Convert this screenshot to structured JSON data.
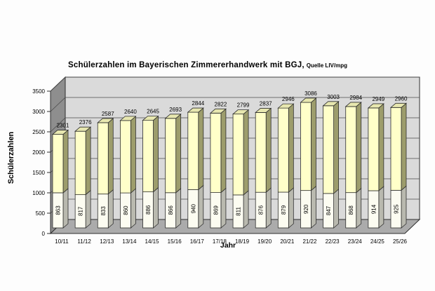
{
  "title": {
    "main": "Schülerzahlen im Bayerischen Zimmererhandwerk mit BGJ,",
    "source": "Quelle LIV/mpg"
  },
  "chart_data": {
    "type": "bar",
    "variant": "3d-stacked-column",
    "title": "Schülerzahlen im Bayerischen Zimmererhandwerk mit BGJ,",
    "source_note": "Quelle LIV/mpg",
    "xlabel": "Jahr",
    "ylabel": "Schülerzahlen",
    "ylim": [
      0,
      3500
    ],
    "yticks": [
      0,
      500,
      1000,
      1500,
      2000,
      2500,
      3000,
      3500
    ],
    "grid": true,
    "legend": false,
    "categories": [
      "10/11",
      "11/12",
      "12/13",
      "13/14",
      "14/15",
      "15/16",
      "16/17",
      "17/18",
      "18/19",
      "19/20",
      "20/21",
      "21/22",
      "22/23",
      "23/24",
      "24/25",
      "25/26"
    ],
    "series": [
      {
        "name": "bottom-segment",
        "values": [
          863,
          817,
          833,
          860,
          886,
          866,
          940,
          869,
          811,
          876,
          879,
          920,
          847,
          868,
          914,
          925
        ],
        "front_color": "#FCFCF1",
        "side_color": "#B9B9AF",
        "top_color": "#E8E8DD"
      },
      {
        "name": "top-segment",
        "values": [
          1438,
          1559,
          1754,
          1780,
          1759,
          1827,
          1904,
          1953,
          1988,
          1961,
          2067,
          2166,
          2156,
          2116,
          2035,
          2035
        ],
        "front_color": "#FFFFC9",
        "side_color": "#9D9D6C",
        "top_color": "#E7E7AF"
      }
    ],
    "totals": [
      2301,
      2376,
      2587,
      2640,
      2645,
      2693,
      2844,
      2822,
      2799,
      2837,
      2946,
      3086,
      3003,
      2984,
      2949,
      2960
    ],
    "colors": {
      "back_wall": "#DADADA",
      "side_wall": "#8E8E8E",
      "floor": "#ABABAB",
      "gridline": "#4A4A4A",
      "outline": "#2E2E2E",
      "text": "#000000"
    }
  }
}
